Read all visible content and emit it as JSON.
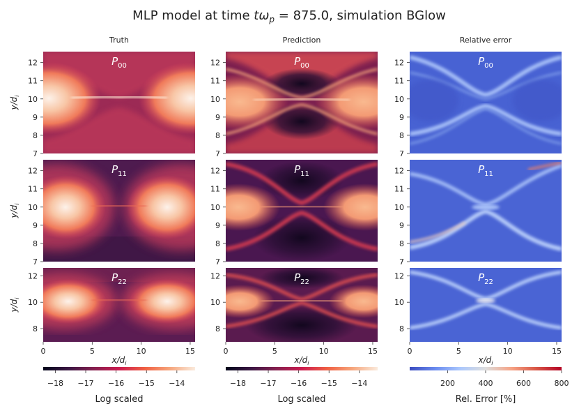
{
  "title": {
    "prefix": "MLP model at time ",
    "t_sym": "t",
    "omega_sym": "ω",
    "p_sub": "p",
    "eq": " = 875.0, simulation BGlow"
  },
  "columns": [
    {
      "title": "Truth",
      "kind": "log"
    },
    {
      "title": "Prediction",
      "kind": "log"
    },
    {
      "title": "Relative error",
      "kind": "rel"
    }
  ],
  "rows": [
    {
      "label_P": "P",
      "label_sub": "00",
      "yticks": [
        7,
        8,
        9,
        10,
        11,
        12
      ],
      "ylim": [
        7,
        12.6
      ]
    },
    {
      "label_P": "P",
      "label_sub": "11",
      "yticks": [
        7,
        8,
        9,
        10,
        11,
        12
      ],
      "ylim": [
        7,
        12.6
      ]
    },
    {
      "label_P": "P",
      "label_sub": "22",
      "yticks": [
        8,
        10,
        12
      ],
      "ylim": [
        7,
        12.6
      ]
    }
  ],
  "ylabel": {
    "base": "y/d",
    "sub": "i"
  },
  "xlabel": {
    "base": "x/d",
    "sub": "i"
  },
  "colorbars": [
    {
      "ticks": [
        "−18",
        "−17",
        "−16",
        "−15",
        "−14"
      ],
      "tick_values": [
        -18,
        -17,
        -16,
        -15,
        -14
      ],
      "range": [
        -18.4,
        -13.4
      ],
      "label": "Log scaled"
    },
    {
      "ticks": [
        "−18",
        "−17",
        "−16",
        "−15",
        "−14"
      ],
      "tick_values": [
        -18,
        -17,
        -16,
        -15,
        -14
      ],
      "range": [
        -18.4,
        -13.4
      ],
      "label": "Log scaled"
    },
    {
      "ticks": [
        "200",
        "400",
        "600",
        "800"
      ],
      "tick_values": [
        200,
        400,
        600,
        800
      ],
      "range": [
        0,
        800
      ],
      "label": "Rel. Error [%]"
    }
  ],
  "chart_data": {
    "type": "heatmap",
    "title": "MLP model at time tω_p = 875.0, simulation BGlow",
    "xlabel": "x/d_i",
    "ylabel": "y/d_i",
    "xlim": [
      0,
      15.5
    ],
    "xticks": [
      0,
      5,
      10,
      15
    ],
    "ylim": [
      7,
      12.6
    ],
    "panels": [
      "Truth",
      "Prediction",
      "Relative error"
    ],
    "components": [
      "P00",
      "P11",
      "P22"
    ],
    "log_colorbar_range": [
      -18.4,
      -13.4
    ],
    "rel_error_colorbar_range": [
      0,
      800
    ]
  },
  "colors": {
    "magma": [
      "#000004",
      "#2c115f",
      "#721f81",
      "#b73779",
      "#f1605d",
      "#feb078",
      "#fcfdbf"
    ],
    "rocket": [
      "#03051a",
      "#3c1744",
      "#84204f",
      "#cb1b4f",
      "#f06043",
      "#f6a47a",
      "#faebdd"
    ],
    "coolwarm": [
      "#3b4cc0",
      "#6a8bef",
      "#aac7fd",
      "#dddddd",
      "#f6a385",
      "#d95847",
      "#b40426"
    ]
  }
}
